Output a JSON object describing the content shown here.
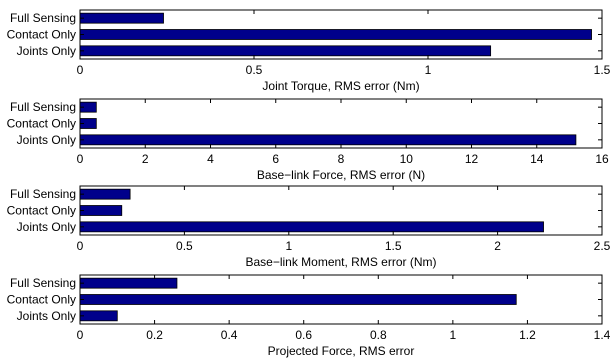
{
  "figure": {
    "bar_color": "#00008b",
    "bar_edge_color": "#000000"
  },
  "chart_data": [
    {
      "type": "bar",
      "orientation": "horizontal",
      "categories": [
        "Full Sensing",
        "Contact Only",
        "Joints Only"
      ],
      "values": [
        0.24,
        1.47,
        1.18
      ],
      "xlabel": "Joint Torque, RMS error (Nm)",
      "xlim": [
        0,
        1.5
      ],
      "xticks": [
        0,
        0.5,
        1,
        1.5
      ],
      "xtick_labels": [
        "0",
        "0.5",
        "1",
        "1.5"
      ],
      "grid": false
    },
    {
      "type": "bar",
      "orientation": "horizontal",
      "categories": [
        "Full Sensing",
        "Contact Only",
        "Joints Only"
      ],
      "values": [
        0.5,
        0.5,
        15.2
      ],
      "xlabel": "Base−link Force, RMS error (N)",
      "xlim": [
        0,
        16
      ],
      "xticks": [
        0,
        2,
        4,
        6,
        8,
        10,
        12,
        14,
        16
      ],
      "xtick_labels": [
        "0",
        "2",
        "4",
        "6",
        "8",
        "10",
        "12",
        "14",
        "16"
      ],
      "grid": false
    },
    {
      "type": "bar",
      "orientation": "horizontal",
      "categories": [
        "Full Sensing",
        "Contact Only",
        "Joints Only"
      ],
      "values": [
        0.24,
        0.2,
        2.22
      ],
      "xlabel": "Base−link Moment, RMS error (Nm)",
      "xlim": [
        0,
        2.5
      ],
      "xticks": [
        0,
        0.5,
        1,
        1.5,
        2,
        2.5
      ],
      "xtick_labels": [
        "0",
        "0.5",
        "1",
        "1.5",
        "2",
        "2.5"
      ],
      "grid": false
    },
    {
      "type": "bar",
      "orientation": "horizontal",
      "categories": [
        "Full Sensing",
        "Contact Only",
        "Joints Only"
      ],
      "values": [
        0.26,
        1.17,
        0.1
      ],
      "xlabel": "Projected Force, RMS error",
      "xlim": [
        0,
        1.4
      ],
      "xticks": [
        0,
        0.2,
        0.4,
        0.6,
        0.8,
        1,
        1.2,
        1.4
      ],
      "xtick_labels": [
        "0",
        "0.2",
        "0.4",
        "0.6",
        "0.8",
        "1",
        "1.2",
        "1.4"
      ],
      "grid": false
    }
  ]
}
